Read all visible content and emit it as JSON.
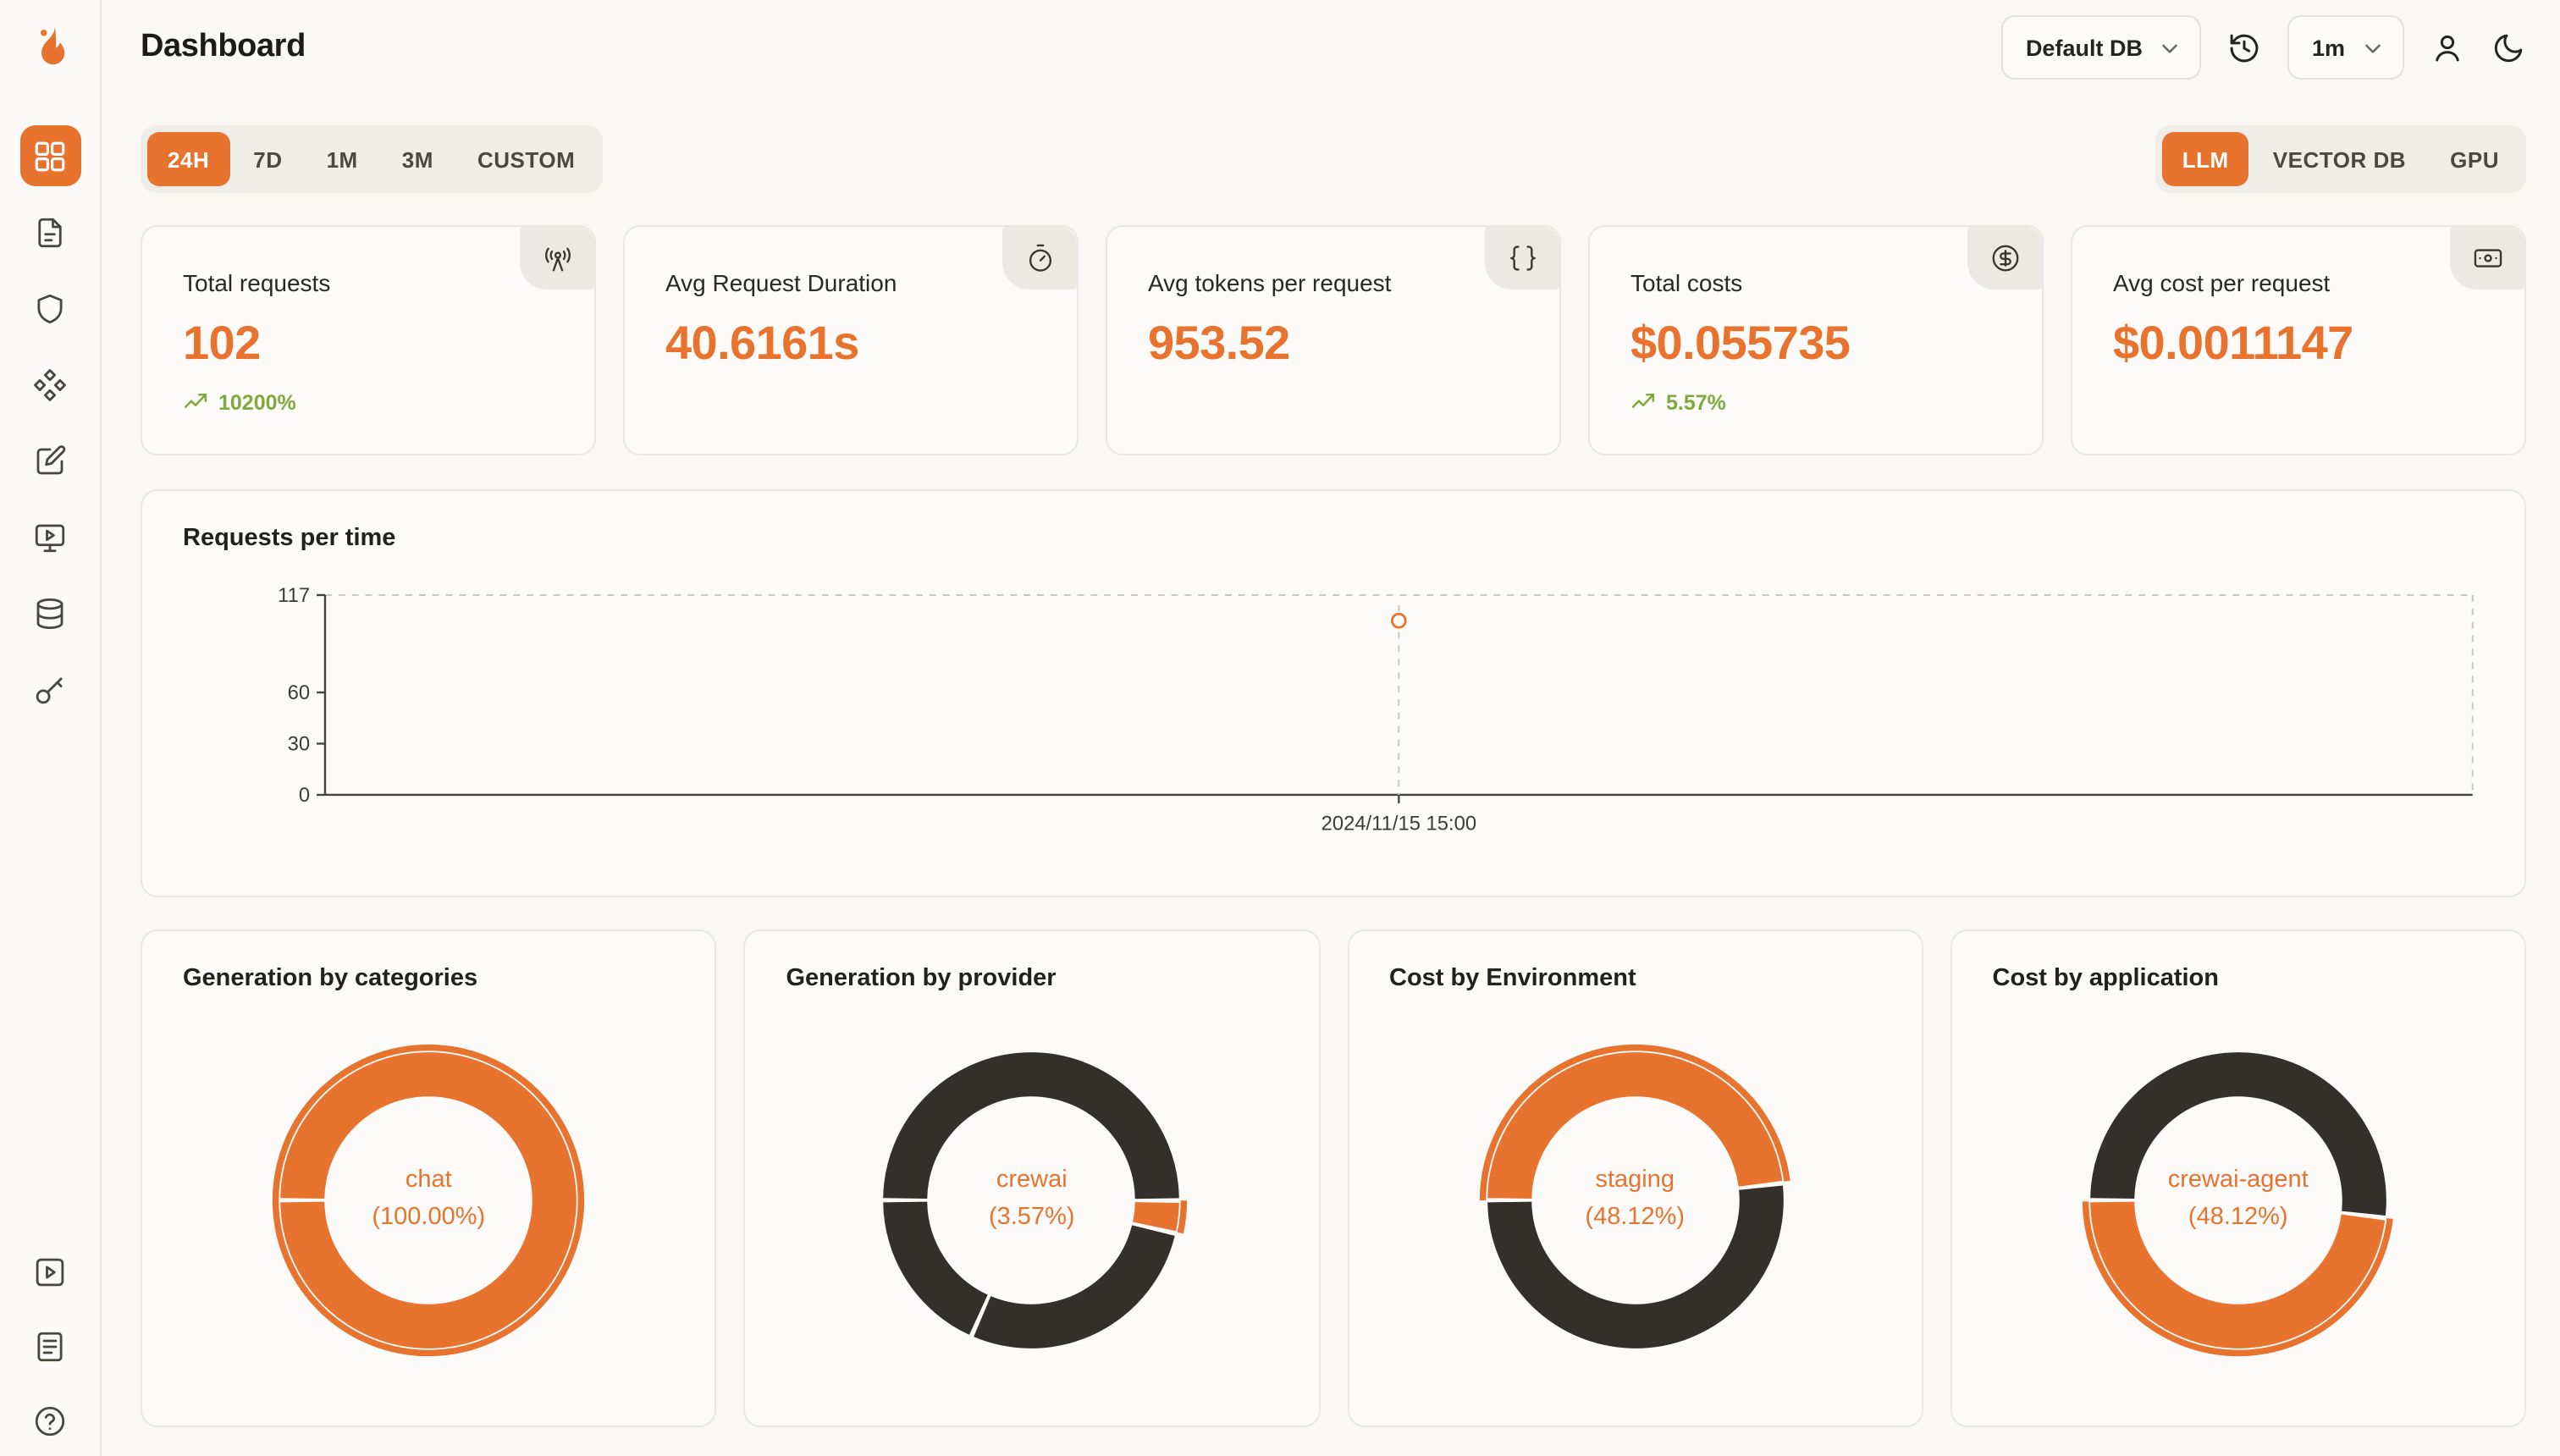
{
  "topbar": {
    "title": "Dashboard",
    "database_select": {
      "value": "Default DB",
      "icon": "chevron-down-icon"
    },
    "history_icon": "history-icon",
    "interval_select": {
      "value": "1m",
      "icon": "chevron-down-icon"
    },
    "user_icon": "user-icon",
    "theme_icon": "moon-icon"
  },
  "sidebar": {
    "logo_icon": "flame-logo",
    "items": [
      {
        "icon": "grid-icon",
        "active": true
      },
      {
        "icon": "file-icon",
        "active": false
      },
      {
        "icon": "shield-icon",
        "active": false
      },
      {
        "icon": "shapes-icon",
        "active": false
      },
      {
        "icon": "square-pen-icon",
        "active": false
      },
      {
        "icon": "monitor-play-icon",
        "active": false
      },
      {
        "icon": "database-icon",
        "active": false
      },
      {
        "icon": "key-icon",
        "active": false
      }
    ],
    "bottom_items": [
      {
        "icon": "play-square-icon"
      },
      {
        "icon": "logs-icon"
      },
      {
        "icon": "help-icon"
      }
    ]
  },
  "filters": {
    "time_ranges": [
      "24H",
      "7D",
      "1M",
      "3M",
      "CUSTOM"
    ],
    "active_time_range": "24H",
    "sources": [
      "LLM",
      "VECTOR DB",
      "GPU"
    ],
    "active_source": "LLM"
  },
  "stats": [
    {
      "title": "Total requests",
      "value": "102",
      "trend": "10200%",
      "icon": "radio-tower-icon"
    },
    {
      "title": "Avg Request Duration",
      "value": "40.6161s",
      "icon": "timer-icon"
    },
    {
      "title": "Avg tokens per request",
      "value": "953.52",
      "icon": "braces-icon"
    },
    {
      "title": "Total costs",
      "value": "$0.055735",
      "trend": "5.57%",
      "icon": "circle-dollar-icon"
    },
    {
      "title": "Avg cost per request",
      "value": "$0.0011147",
      "icon": "banknote-icon"
    }
  ],
  "colors": {
    "accent": "#E8732E",
    "dark_slice": "#33302B",
    "green": "#7FA83D"
  },
  "chart_data": [
    {
      "id": "requests_per_time",
      "type": "scatter",
      "title": "Requests per time",
      "ylim": [
        0,
        117
      ],
      "y_ticks": [
        0,
        30,
        60,
        117
      ],
      "x_tick_labels": [
        "2024/11/15 15:00"
      ],
      "points": [
        {
          "x_fraction": 0.5,
          "x_label": "2024/11/15 15:00",
          "y": 102
        }
      ],
      "grid": "dashed-top-right-border"
    },
    {
      "id": "generation_by_categories",
      "type": "pie",
      "title": "Generation by categories",
      "center_label": "chat",
      "center_pct": "(100.00%)",
      "segments": [
        {
          "label": "chat",
          "value": 100.0,
          "color": "#E8732E",
          "highlight": true
        }
      ]
    },
    {
      "id": "generation_by_provider",
      "type": "pie",
      "title": "Generation by provider",
      "center_label": "crewai",
      "center_pct": "(3.57%)",
      "segments": [
        {
          "label": "",
          "value": 50.0,
          "color": "#33302B",
          "highlight": false
        },
        {
          "label": "crewai",
          "value": 3.57,
          "color": "#E8732E",
          "highlight": true
        },
        {
          "label": "",
          "value": 28.0,
          "color": "#33302B",
          "highlight": false
        },
        {
          "label": "",
          "value": 18.43,
          "color": "#33302B",
          "highlight": false
        }
      ]
    },
    {
      "id": "cost_by_environment",
      "type": "pie",
      "title": "Cost by Environment",
      "center_label": "staging",
      "center_pct": "(48.12%)",
      "segments": [
        {
          "label": "staging",
          "value": 48.12,
          "color": "#E8732E",
          "highlight": true
        },
        {
          "label": "",
          "value": 51.88,
          "color": "#33302B",
          "highlight": false
        }
      ]
    },
    {
      "id": "cost_by_application",
      "type": "pie",
      "title": "Cost by application",
      "center_label": "crewai-agent",
      "center_pct": "(48.12%)",
      "segments": [
        {
          "label": "",
          "value": 51.88,
          "color": "#33302B",
          "highlight": false
        },
        {
          "label": "crewai-agent",
          "value": 48.12,
          "color": "#E8732E",
          "highlight": true
        }
      ]
    }
  ]
}
